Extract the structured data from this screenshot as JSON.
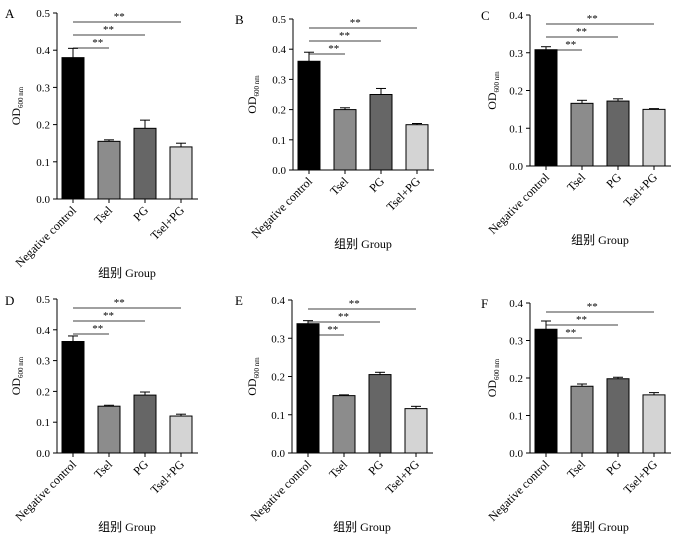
{
  "chart_data": [
    {
      "type": "bar",
      "panel": "A",
      "categories": [
        "Negative control",
        "Tsel",
        "PG",
        "Tsel+PG"
      ],
      "values": [
        0.38,
        0.155,
        0.19,
        0.14
      ],
      "errors": [
        0.025,
        0.004,
        0.022,
        0.01
      ],
      "colors": [
        "#000000",
        "#8c8c8c",
        "#666666",
        "#d4d4d4"
      ],
      "ylim": [
        0,
        0.5
      ],
      "yticks": [
        "0.0",
        "0.1",
        "0.2",
        "0.3",
        "0.4",
        "0.5"
      ],
      "ylabel_main": "OD",
      "ylabel_sub": "600 nm",
      "xlabel": "组别 Group",
      "significance": [
        "**",
        "**",
        "**"
      ]
    },
    {
      "type": "bar",
      "panel": "B",
      "categories": [
        "Negative control",
        "Tsel",
        "PG",
        "Tsel+PG"
      ],
      "values": [
        0.36,
        0.2,
        0.25,
        0.15
      ],
      "errors": [
        0.03,
        0.006,
        0.02,
        0.004
      ],
      "colors": [
        "#000000",
        "#8c8c8c",
        "#666666",
        "#d4d4d4"
      ],
      "ylim": [
        0,
        0.5
      ],
      "yticks": [
        "0.0",
        "0.1",
        "0.2",
        "0.3",
        "0.4",
        "0.5"
      ],
      "ylabel_main": "OD",
      "ylabel_sub": "600 nm",
      "xlabel": "组别 Group",
      "significance": [
        "**",
        "**",
        "**"
      ]
    },
    {
      "type": "bar",
      "panel": "C",
      "categories": [
        "Negative control",
        "Tsel",
        "PG",
        "Tsel+PG"
      ],
      "values": [
        0.308,
        0.166,
        0.172,
        0.15
      ],
      "errors": [
        0.008,
        0.008,
        0.006,
        0.002
      ],
      "colors": [
        "#000000",
        "#8c8c8c",
        "#666666",
        "#d4d4d4"
      ],
      "ylim": [
        0,
        0.4
      ],
      "yticks": [
        "0.0",
        "0.1",
        "0.2",
        "0.3",
        "0.4"
      ],
      "ylabel_main": "OD",
      "ylabel_sub": "600 nm",
      "xlabel": "组别 Group",
      "significance": [
        "**",
        "**",
        "**"
      ]
    },
    {
      "type": "bar",
      "panel": "D",
      "categories": [
        "Negative control",
        "Tsel",
        "PG",
        "Tsel+PG"
      ],
      "values": [
        0.362,
        0.152,
        0.188,
        0.12
      ],
      "errors": [
        0.018,
        0.003,
        0.01,
        0.006
      ],
      "colors": [
        "#000000",
        "#8c8c8c",
        "#666666",
        "#d4d4d4"
      ],
      "ylim": [
        0,
        0.5
      ],
      "yticks": [
        "0.0",
        "0.1",
        "0.2",
        "0.3",
        "0.4",
        "0.5"
      ],
      "ylabel_main": "OD",
      "ylabel_sub": "600 nm",
      "xlabel": "组别 Group",
      "significance": [
        "**",
        "**",
        "**"
      ]
    },
    {
      "type": "bar",
      "panel": "E",
      "categories": [
        "Negative control",
        "Tsel",
        "PG",
        "Tsel+PG"
      ],
      "values": [
        0.338,
        0.15,
        0.205,
        0.116
      ],
      "errors": [
        0.008,
        0.002,
        0.006,
        0.006
      ],
      "colors": [
        "#000000",
        "#8c8c8c",
        "#666666",
        "#d4d4d4"
      ],
      "ylim": [
        0,
        0.4
      ],
      "yticks": [
        "0.0",
        "0.1",
        "0.2",
        "0.3",
        "0.4"
      ],
      "ylabel_main": "OD",
      "ylabel_sub": "600 nm",
      "xlabel": "组别 Group",
      "significance": [
        "**",
        "**",
        "**"
      ]
    },
    {
      "type": "bar",
      "panel": "F",
      "categories": [
        "Negative control",
        "Tsel",
        "PG",
        "Tsel+PG"
      ],
      "values": [
        0.33,
        0.178,
        0.198,
        0.155
      ],
      "errors": [
        0.022,
        0.006,
        0.004,
        0.006
      ],
      "colors": [
        "#000000",
        "#8c8c8c",
        "#666666",
        "#d4d4d4"
      ],
      "ylim": [
        0,
        0.4
      ],
      "yticks": [
        "0.0",
        "0.1",
        "0.2",
        "0.3",
        "0.4"
      ],
      "ylabel_main": "OD",
      "ylabel_sub": "600 nm",
      "xlabel": "组别 Group",
      "significance": [
        "**",
        "**",
        "**"
      ]
    }
  ]
}
